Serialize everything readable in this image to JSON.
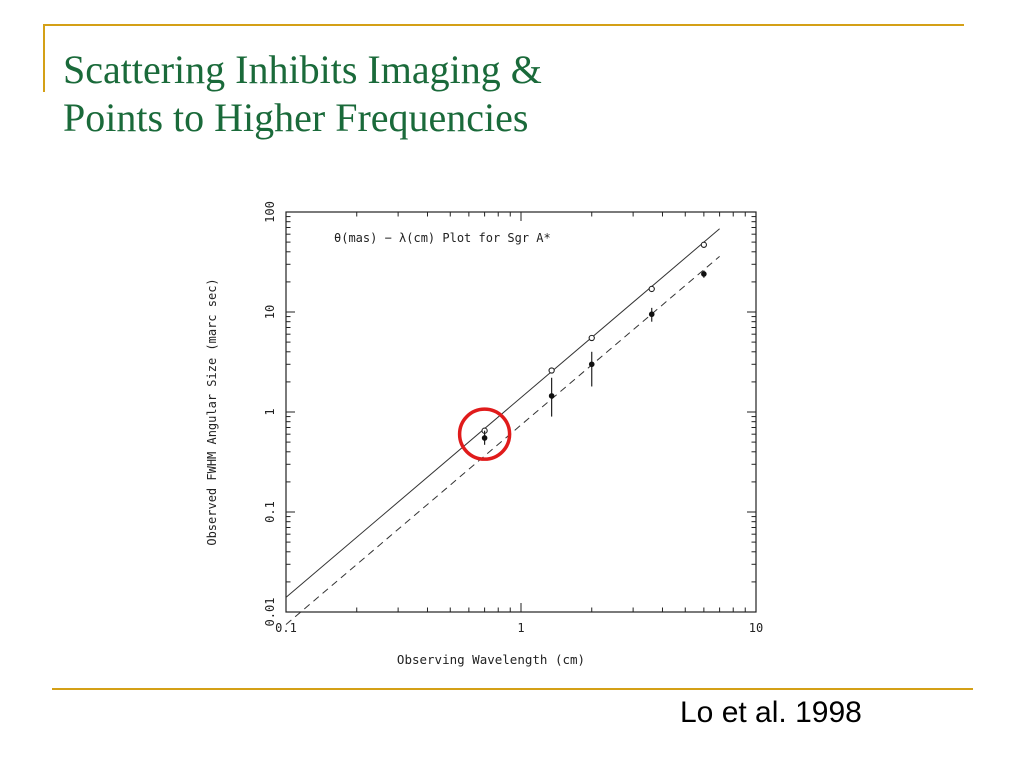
{
  "slide": {
    "title_line1": "Scattering Inhibits Imaging &",
    "title_line2": "Points to Higher Frequencies",
    "citation": "Lo et al. 1998",
    "colors": {
      "title": "#1a6a3a",
      "accent": "#d4a017",
      "highlight": "#e01b1b"
    }
  },
  "chart_data": {
    "type": "scatter",
    "title": "θ(mas) − λ(cm) Plot for Sgr A*",
    "xlabel": "Observing Wavelength (cm)",
    "ylabel": "Observed FWHM  Angular Size (marc sec)",
    "xscale": "log",
    "yscale": "log",
    "xlim": [
      0.1,
      10
    ],
    "ylim": [
      0.01,
      100
    ],
    "x_ticks": [
      "0.1",
      "1",
      "10"
    ],
    "y_ticks": [
      "0.01",
      "0.1",
      "1",
      "10",
      "100"
    ],
    "grid": false,
    "legend": "none",
    "series": [
      {
        "marker": "open-circle",
        "points": [
          {
            "x": 0.7,
            "y": 0.65
          },
          {
            "x": 1.35,
            "y": 2.6
          },
          {
            "x": 2.0,
            "y": 5.5
          },
          {
            "x": 3.6,
            "y": 17
          },
          {
            "x": 6.0,
            "y": 47
          }
        ]
      },
      {
        "marker": "filled-circle",
        "points": [
          {
            "x": 0.7,
            "y": 0.55,
            "err_low": 0.47,
            "err_high": 0.65
          },
          {
            "x": 1.35,
            "y": 1.45,
            "err_low": 0.9,
            "err_high": 2.2
          },
          {
            "x": 2.0,
            "y": 3.0,
            "err_low": 1.8,
            "err_high": 4.0
          },
          {
            "x": 3.6,
            "y": 9.5,
            "err_low": 8.0,
            "err_high": 11.0
          },
          {
            "x": 6.0,
            "y": 24,
            "err_low": 22,
            "err_high": 26
          }
        ]
      }
    ],
    "fit_lines": [
      {
        "style": "solid",
        "x": [
          0.1,
          7.0
        ],
        "y": [
          0.014,
          68
        ]
      },
      {
        "style": "dashed",
        "x": [
          0.1,
          7.0
        ],
        "y": [
          0.0075,
          36
        ]
      }
    ],
    "highlight": {
      "shape": "circle",
      "x": 0.7,
      "y": 0.6,
      "color": "#e01b1b"
    }
  }
}
